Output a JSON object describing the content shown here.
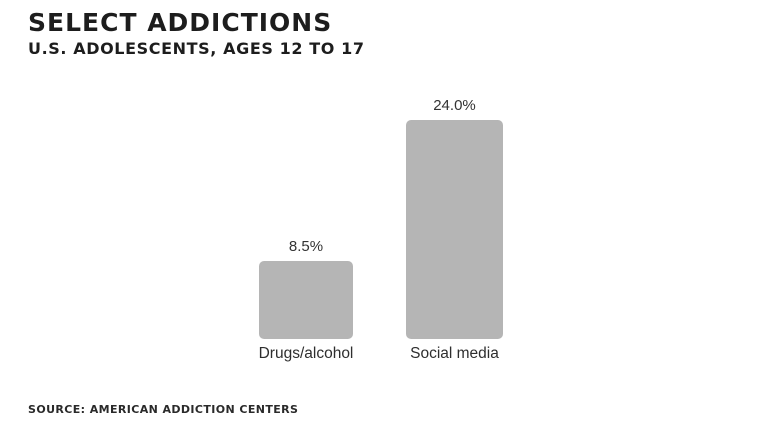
{
  "chart_data": {
    "type": "bar",
    "title": "SELECT ADDICTIONS",
    "subtitle": "U.S. ADOLESCENTS, AGES 12 TO 17",
    "source": "SOURCE: AMERICAN ADDICTION CENTERS",
    "categories": [
      "Drugs/alcohol",
      "Social media"
    ],
    "values": [
      8.5,
      24.0
    ],
    "value_labels": [
      "8.5%",
      "24.0%"
    ],
    "unit": "%",
    "xlabel": "",
    "ylabel": "",
    "ylim": [
      0,
      24
    ],
    "grid": false,
    "legend": false,
    "bar_color": "#b5b5b5",
    "title_color": "#1d1d1d",
    "label_color": "#333333",
    "background_color": "#ffffff"
  }
}
